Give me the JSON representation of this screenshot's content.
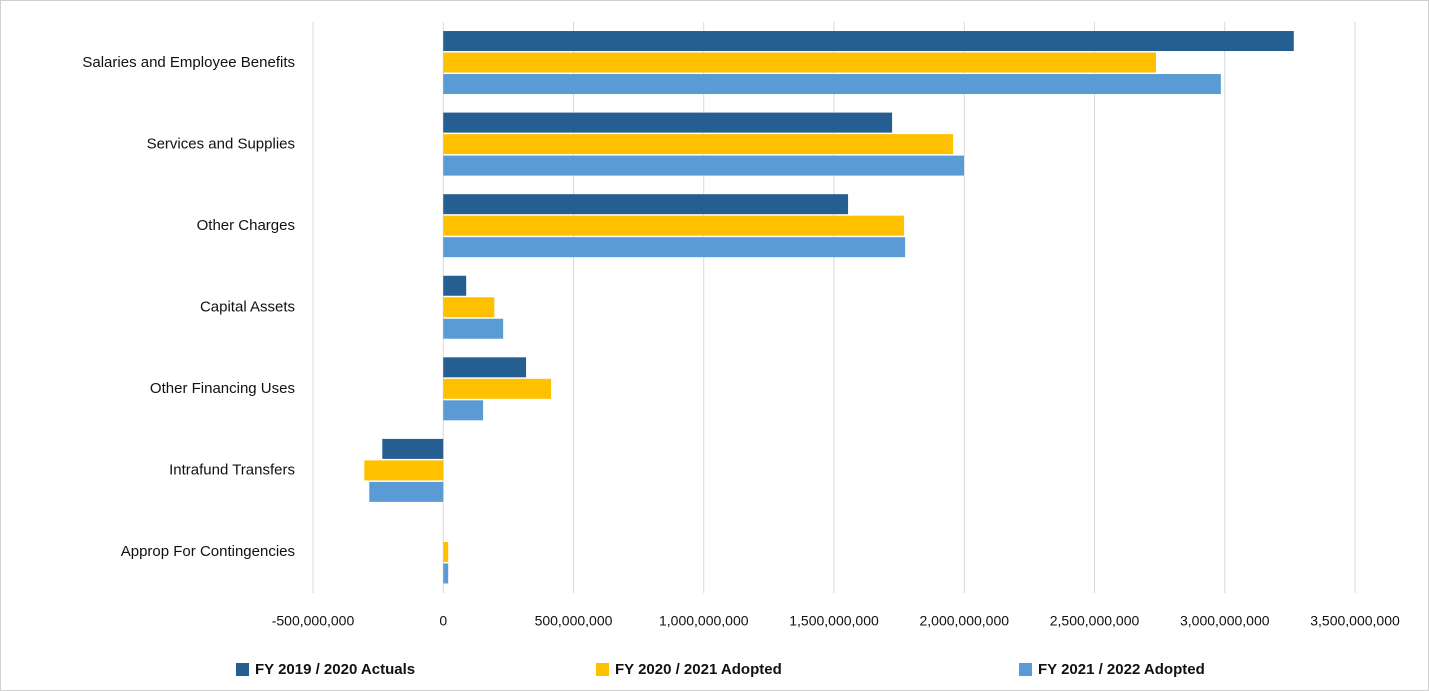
{
  "chart_data": {
    "type": "bar",
    "orientation": "horizontal",
    "categories": [
      "Salaries and Employee Benefits",
      "Services and Supplies",
      "Other Charges",
      "Capital Assets",
      "Other Financing Uses",
      "Intrafund Transfers",
      "Approp For Contingencies"
    ],
    "series": [
      {
        "name": "FY 2019 / 2020 Actuals",
        "color": "#255e91",
        "values": [
          3265000000,
          1723000000,
          1554000000,
          88000000,
          318000000,
          -234000000,
          0
        ]
      },
      {
        "name": "FY 2020 / 2021 Adopted",
        "color": "#ffc000",
        "values": [
          2736000000,
          1957000000,
          1769000000,
          196000000,
          414000000,
          -303000000,
          19000000
        ]
      },
      {
        "name": "FY 2021 / 2022 Adopted",
        "color": "#5b9bd5",
        "values": [
          2985000000,
          1999000000,
          1773000000,
          230000000,
          153000000,
          -284000000,
          19000000
        ]
      }
    ],
    "xlim": [
      -500000000,
      3500000000
    ],
    "xticks": [
      {
        "value": -500000000,
        "label": "-500,000,000"
      },
      0,
      {
        "value": 500000000,
        "label": "500,000,000"
      },
      {
        "value": 1000000000,
        "label": "1,000,000,000"
      },
      {
        "value": 1500000000,
        "label": "1,500,000,000"
      },
      {
        "value": 2000000000,
        "label": "2,000,000,000"
      },
      {
        "value": 2500000000,
        "label": "2,500,000,000"
      },
      {
        "value": 3000000000,
        "label": "3,000,000,000"
      },
      {
        "value": 3500000000,
        "label": "3,500,000,000"
      }
    ],
    "grid": true,
    "legend": "bottom"
  }
}
